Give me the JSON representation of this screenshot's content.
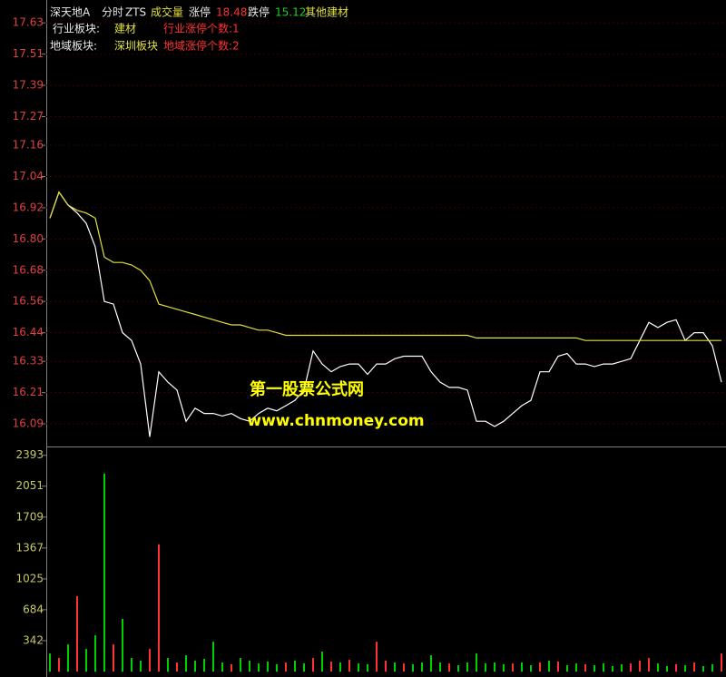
{
  "header": {
    "stock": "深天地A",
    "mode": "分时",
    "indicator": "ZTS",
    "volume_label": "成交量",
    "limit_up_label": "涨停",
    "limit_up": "18.48",
    "limit_down_label": "跌停",
    "limit_down": "15.12",
    "sector": "其他建材",
    "industry_label": "行业板块:",
    "industry": "建材",
    "industry_count": "行业涨停个数:1",
    "region_label": "地域板块:",
    "region": "深圳板块",
    "region_count": "地域涨停个数:2"
  },
  "watermark": {
    "title": "第一股票公式网",
    "url": "www.chnmoney.com"
  },
  "chart_data": [
    {
      "type": "line",
      "ylim": [
        16.01,
        17.69
      ],
      "yticks": [
        17.63,
        17.51,
        17.39,
        17.27,
        17.16,
        17.04,
        16.92,
        {
          "value": 16.8,
          "label": "16.80"
        },
        16.68,
        16.56,
        16.44,
        16.33,
        16.21,
        16.09
      ],
      "tick_color": "#e04040",
      "grid": true,
      "series": [
        {
          "color": "#ffffff",
          "values": [
            16.88,
            16.98,
            16.93,
            16.9,
            16.86,
            16.77,
            16.56,
            16.55,
            16.44,
            16.41,
            16.32,
            16.04,
            16.29,
            16.25,
            16.22,
            16.1,
            16.15,
            16.13,
            16.13,
            16.12,
            16.13,
            16.11,
            16.1,
            16.13,
            16.15,
            16.14,
            16.16,
            16.18,
            16.22,
            16.37,
            16.32,
            16.29,
            16.31,
            16.32,
            16.32,
            16.28,
            16.32,
            16.32,
            16.34,
            16.35,
            16.35,
            16.35,
            16.29,
            16.25,
            16.23,
            16.23,
            16.22,
            16.1,
            16.1,
            16.08,
            16.1,
            16.13,
            16.16,
            16.18,
            16.29,
            16.29,
            16.35,
            16.36,
            16.32,
            16.32,
            16.31,
            16.32,
            16.32,
            16.33,
            16.34,
            16.41,
            16.48,
            16.46,
            16.48,
            16.49,
            16.41,
            16.44,
            16.44,
            16.39,
            16.25
          ]
        },
        {
          "color": "#e0e040",
          "values": [
            16.88,
            16.98,
            16.93,
            16.91,
            16.9,
            16.88,
            16.73,
            16.71,
            16.71,
            16.7,
            16.68,
            16.64,
            16.55,
            16.54,
            16.53,
            16.52,
            16.51,
            16.5,
            16.49,
            16.48,
            16.47,
            16.47,
            16.46,
            16.45,
            16.45,
            16.44,
            16.43,
            16.43,
            16.43,
            16.43,
            16.43,
            16.43,
            16.43,
            16.43,
            16.43,
            16.43,
            16.43,
            16.43,
            16.43,
            16.43,
            16.43,
            16.43,
            16.43,
            16.43,
            16.43,
            16.43,
            16.43,
            16.42,
            16.42,
            16.42,
            16.42,
            16.42,
            16.42,
            16.42,
            16.42,
            16.42,
            16.42,
            16.42,
            16.42,
            16.41,
            16.41,
            16.41,
            16.41,
            16.41,
            16.41,
            16.41,
            16.41,
            16.41,
            16.41,
            16.41,
            16.41,
            16.41,
            16.41,
            16.41,
            16.41
          ]
        }
      ]
    },
    {
      "type": "bar",
      "ylim": [
        0,
        2460
      ],
      "yticks": [
        2393,
        2051,
        1709,
        1367,
        1025,
        684,
        342
      ],
      "tick_color": "#c8c864",
      "values": [
        200,
        150,
        300,
        834,
        250,
        400,
        2191,
        300,
        583,
        150,
        120,
        250,
        1407,
        150,
        100,
        180,
        120,
        140,
        330,
        100,
        80,
        150,
        120,
        90,
        110,
        80,
        100,
        120,
        90,
        150,
        220,
        110,
        100,
        130,
        90,
        80,
        330,
        120,
        100,
        90,
        80,
        100,
        180,
        100,
        90,
        70,
        100,
        200,
        90,
        100,
        80,
        90,
        100,
        70,
        100,
        120,
        110,
        70,
        90,
        80,
        70,
        90,
        60,
        80,
        90,
        120,
        150,
        90,
        60,
        80,
        70,
        100,
        60,
        80,
        200
      ],
      "colors": [
        "#00d000",
        "#ff3232",
        "#00d000",
        "#ff3232",
        "#00d000",
        "#00d000",
        "#00d000",
        "#ff3232",
        "#00d000",
        "#00d000",
        "#00d000",
        "#ff3232",
        "#ff3232",
        "#00d000",
        "#ff3232",
        "#00d000",
        "#00d000",
        "#00d000",
        "#00d000",
        "#00d000",
        "#ff3232",
        "#00d000",
        "#00d000",
        "#00d000",
        "#00d000",
        "#00d000",
        "#ff3232",
        "#00d000",
        "#00d000",
        "#ff3232",
        "#00d000",
        "#ff3232",
        "#00d000",
        "#ff3232",
        "#00d000",
        "#00d000",
        "#ff3232",
        "#ff3232",
        "#00d000",
        "#ff3232",
        "#00d000",
        "#00d000",
        "#00d000",
        "#00d000",
        "#ff3232",
        "#00d000",
        "#00d000",
        "#00d000",
        "#00d000",
        "#00d000",
        "#00d000",
        "#ff3232",
        "#00d000",
        "#00d000",
        "#ff3232",
        "#00d000",
        "#ff3232",
        "#00d000",
        "#00d000",
        "#ff3232",
        "#00d000",
        "#00d000",
        "#00d000",
        "#00d000",
        "#ff3232",
        "#ff3232",
        "#ff3232",
        "#00d000",
        "#00d000",
        "#ff3232",
        "#00d000",
        "#ff3232",
        "#00d000",
        "#00d000",
        "#ff3232"
      ]
    }
  ]
}
